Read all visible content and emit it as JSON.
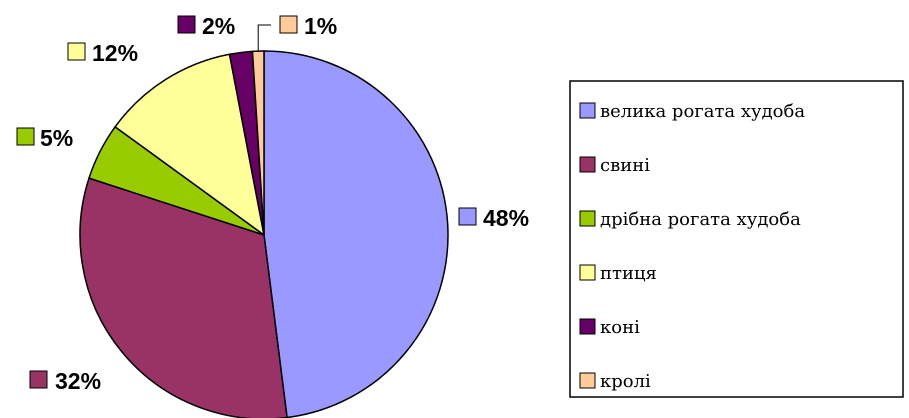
{
  "chart_data": {
    "type": "pie",
    "title": "",
    "slices": [
      {
        "label": "велика рогата худоба",
        "value": 48,
        "value_label": "48%",
        "color": "#9999ff"
      },
      {
        "label": "свині",
        "value": 32,
        "value_label": "32%",
        "color": "#993366"
      },
      {
        "label": "дрібна рогата худоба",
        "value": 5,
        "value_label": "5%",
        "color": "#99cc00"
      },
      {
        "label": "птиця",
        "value": 12,
        "value_label": "12%",
        "color": "#ffff99"
      },
      {
        "label": "коні",
        "value": 2,
        "value_label": "2%",
        "color": "#660066"
      },
      {
        "label": "кролі",
        "value": 1,
        "value_label": "1%",
        "color": "#ffcc99"
      }
    ],
    "start_angle": "12 o'clock",
    "direction": "clockwise",
    "legend_position": "right"
  }
}
